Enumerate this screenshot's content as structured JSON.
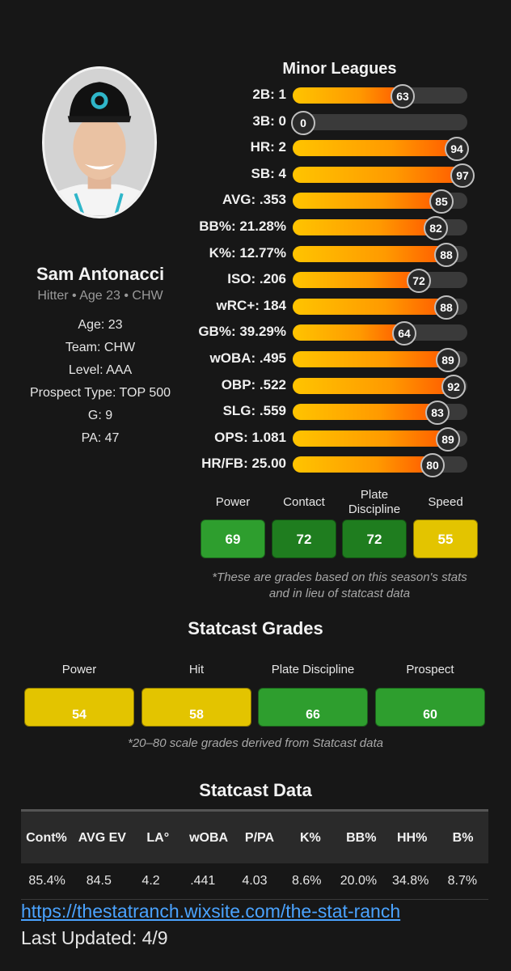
{
  "player": {
    "name": "Sam Antonacci",
    "subtitle": "Hitter • Age 23 • CHW",
    "info": [
      "Age: 23",
      "Team: CHW",
      "Level: AAA",
      "Prospect Type: TOP 500",
      "G: 9",
      "PA: 47"
    ]
  },
  "minor_leagues": {
    "title": "Minor Leagues",
    "stats": [
      {
        "label": "2B: 1",
        "pct": 63
      },
      {
        "label": "3B: 0",
        "pct": 0
      },
      {
        "label": "HR: 2",
        "pct": 94
      },
      {
        "label": "SB: 4",
        "pct": 97
      },
      {
        "label": "AVG: .353",
        "pct": 85
      },
      {
        "label": "BB%: 21.28%",
        "pct": 82
      },
      {
        "label": "K%: 12.77%",
        "pct": 88
      },
      {
        "label": "ISO: .206",
        "pct": 72
      },
      {
        "label": "wRC+: 184",
        "pct": 88
      },
      {
        "label": "GB%: 39.29%",
        "pct": 64
      },
      {
        "label": "wOBA: .495",
        "pct": 89
      },
      {
        "label": "OBP: .522",
        "pct": 92
      },
      {
        "label": "SLG: .559",
        "pct": 83
      },
      {
        "label": "OPS: 1.081",
        "pct": 89
      },
      {
        "label": "HR/FB: 25.00",
        "pct": 80
      }
    ]
  },
  "minor_grades": [
    {
      "label": "Power",
      "value": "69",
      "color": "#2e9e2e"
    },
    {
      "label": "Contact",
      "value": "72",
      "color": "#1f7d1f"
    },
    {
      "label": "Plate\nDiscipline",
      "value": "72",
      "color": "#1f7d1f"
    },
    {
      "label": "Speed",
      "value": "55",
      "color": "#e3c400"
    }
  ],
  "minor_note": "*These are grades based on this season's stats and in lieu of statcast data",
  "statcast_grades": {
    "title": "Statcast Grades",
    "items": [
      {
        "label": "Power",
        "value": "54",
        "color": "#e3c400"
      },
      {
        "label": "Hit",
        "value": "58",
        "color": "#e3c400"
      },
      {
        "label": "Plate Discipline",
        "value": "66",
        "color": "#2e9e2e"
      },
      {
        "label": "Prospect",
        "value": "60",
        "color": "#2e9e2e"
      }
    ],
    "note": "*20–80 scale grades derived from Statcast data"
  },
  "statcast_data": {
    "title": "Statcast Data",
    "headers": [
      "Cont%",
      "AVG EV",
      "LA°",
      "wOBA",
      "P/PA",
      "K%",
      "BB%",
      "HH%",
      "B%"
    ],
    "values": [
      "85.4%",
      "84.5",
      "4.2",
      ".441",
      "4.03",
      "8.6%",
      "20.0%",
      "34.8%",
      "8.7%"
    ]
  },
  "footer": {
    "link": "https://thestatranch.wixsite.com/the-stat-ranch",
    "updated": "Last Updated: 4/9"
  }
}
